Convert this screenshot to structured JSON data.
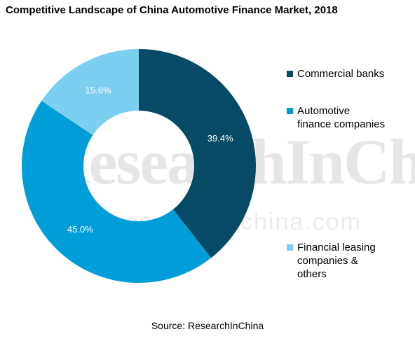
{
  "chart_data": {
    "type": "pie",
    "variant": "donut",
    "title": "Competitive Landscape of China Automotive Finance Market, 2018",
    "slices": [
      {
        "label": "Commercial banks",
        "value": 39.4,
        "value_label": "39.4%",
        "color": "#074a65"
      },
      {
        "label": "Automotive finance companies",
        "value": 45.0,
        "value_label": "45.0%",
        "color": "#009ed8"
      },
      {
        "label": "Financial leasing companies & others",
        "value": 15.6,
        "value_label": "15.6%",
        "color": "#7dcff2"
      }
    ],
    "legend": [
      {
        "lines": [
          "Commercial banks"
        ],
        "color": "#074a65"
      },
      {
        "lines": [
          "Automotive",
          "finance companies"
        ],
        "color": "#009ed8"
      },
      {
        "lines": [
          "Financial leasing",
          "companies &",
          "others"
        ],
        "color": "#7dcff2"
      }
    ],
    "legend_position": "right",
    "source": "Source: ResearchInChina",
    "watermark": {
      "brand": "ResearchInChina",
      "url": "www.researchinchina.com"
    }
  }
}
